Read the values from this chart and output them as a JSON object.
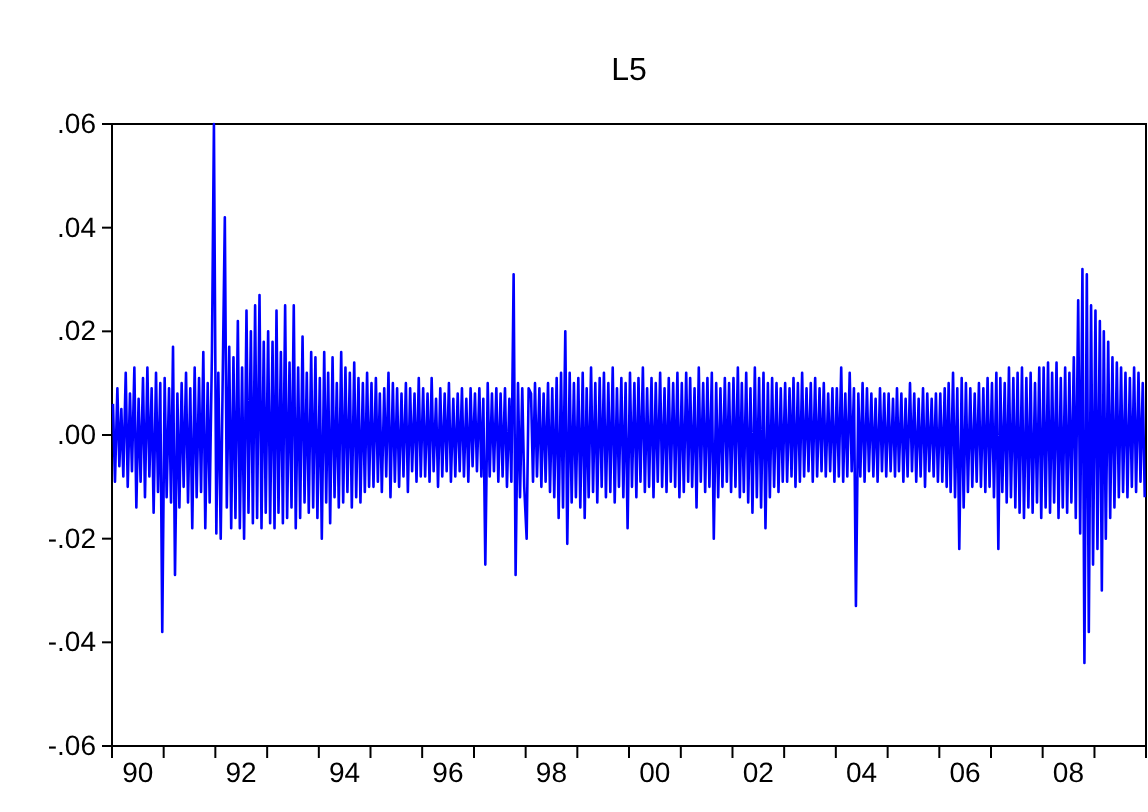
{
  "chart_data": {
    "type": "line",
    "title": "L5",
    "line_style": "solid",
    "marker": "none",
    "grid": false,
    "xlim": [
      "1990-01-01",
      "2009-12-31"
    ],
    "xticks": [
      {
        "value": "1990-01-01",
        "label": null
      },
      {
        "value": "1990-07-02",
        "label": "90"
      },
      {
        "value": "1991-01-01",
        "label": null
      },
      {
        "value": "1992-01-01",
        "label": null
      },
      {
        "value": "1992-07-01",
        "label": "92"
      },
      {
        "value": "1993-01-01",
        "label": null
      },
      {
        "value": "1994-01-01",
        "label": null
      },
      {
        "value": "1994-07-02",
        "label": "94"
      },
      {
        "value": "1995-01-01",
        "label": null
      },
      {
        "value": "1996-01-01",
        "label": null
      },
      {
        "value": "1996-07-01",
        "label": "96"
      },
      {
        "value": "1997-01-01",
        "label": null
      },
      {
        "value": "1998-01-01",
        "label": null
      },
      {
        "value": "1998-07-02",
        "label": "98"
      },
      {
        "value": "1999-01-01",
        "label": null
      },
      {
        "value": "2000-01-01",
        "label": null
      },
      {
        "value": "2000-07-01",
        "label": "00"
      },
      {
        "value": "2001-01-01",
        "label": null
      },
      {
        "value": "2002-01-01",
        "label": null
      },
      {
        "value": "2002-07-02",
        "label": "02"
      },
      {
        "value": "2003-01-01",
        "label": null
      },
      {
        "value": "2004-01-01",
        "label": null
      },
      {
        "value": "2004-07-01",
        "label": "04"
      },
      {
        "value": "2005-01-01",
        "label": null
      },
      {
        "value": "2006-01-01",
        "label": null
      },
      {
        "value": "2006-07-02",
        "label": "06"
      },
      {
        "value": "2007-01-01",
        "label": null
      },
      {
        "value": "2008-01-01",
        "label": null
      },
      {
        "value": "2008-07-01",
        "label": "08"
      },
      {
        "value": "2009-01-01",
        "label": null
      }
    ],
    "ylim": [
      -0.06,
      0.06
    ],
    "yticks": [
      {
        "value": -0.06,
        "label": "-.06"
      },
      {
        "value": -0.04,
        "label": "-.04"
      },
      {
        "value": -0.02,
        "label": "-.02"
      },
      {
        "value": 0,
        "label": ".00"
      },
      {
        "value": 0.02,
        "label": ".02"
      },
      {
        "value": 0.04,
        "label": ".04"
      },
      {
        "value": 0.06,
        "label": ".06"
      }
    ],
    "x": [
      "1990-01-08",
      "1990-01-22",
      "1990-02-08",
      "1990-02-22",
      "1990-03-08",
      "1990-03-22",
      "1990-04-08",
      "1990-04-22",
      "1990-05-08",
      "1990-05-22",
      "1990-06-08",
      "1990-06-22",
      "1990-07-08",
      "1990-07-22",
      "1990-08-08",
      "1990-08-22",
      "1990-09-08",
      "1990-09-22",
      "1990-10-08",
      "1990-10-22",
      "1990-11-08",
      "1990-11-22",
      "1990-12-08",
      "1990-12-22",
      "1991-01-08",
      "1991-01-22",
      "1991-02-08",
      "1991-02-22",
      "1991-03-08",
      "1991-03-22",
      "1991-04-08",
      "1991-04-22",
      "1991-05-08",
      "1991-05-22",
      "1991-06-08",
      "1991-06-22",
      "1991-07-08",
      "1991-07-22",
      "1991-08-08",
      "1991-08-22",
      "1991-09-08",
      "1991-09-22",
      "1991-10-08",
      "1991-10-22",
      "1991-11-08",
      "1991-11-22",
      "1991-12-08",
      "1991-12-22",
      "1992-01-08",
      "1992-01-22",
      "1992-02-08",
      "1992-02-22",
      "1992-03-08",
      "1992-03-22",
      "1992-04-08",
      "1992-04-22",
      "1992-05-08",
      "1992-05-22",
      "1992-06-08",
      "1992-06-22",
      "1992-07-08",
      "1992-07-22",
      "1992-08-08",
      "1992-08-22",
      "1992-09-08",
      "1992-09-22",
      "1992-10-08",
      "1992-10-22",
      "1992-11-08",
      "1992-11-22",
      "1992-12-08",
      "1992-12-22",
      "1993-01-08",
      "1993-01-22",
      "1993-02-08",
      "1993-02-22",
      "1993-03-08",
      "1993-03-22",
      "1993-04-08",
      "1993-04-22",
      "1993-05-08",
      "1993-05-22",
      "1993-06-08",
      "1993-06-22",
      "1993-07-08",
      "1993-07-22",
      "1993-08-08",
      "1993-08-22",
      "1993-09-08",
      "1993-09-22",
      "1993-10-08",
      "1993-10-22",
      "1993-11-08",
      "1993-11-22",
      "1993-12-08",
      "1993-12-22",
      "1994-01-08",
      "1994-01-22",
      "1994-02-08",
      "1994-02-22",
      "1994-03-08",
      "1994-03-22",
      "1994-04-08",
      "1994-04-22",
      "1994-05-08",
      "1994-05-22",
      "1994-06-08",
      "1994-06-22",
      "1994-07-08",
      "1994-07-22",
      "1994-08-08",
      "1994-08-22",
      "1994-09-08",
      "1994-09-22",
      "1994-10-08",
      "1994-10-22",
      "1994-11-08",
      "1994-11-22",
      "1994-12-08",
      "1994-12-22",
      "1995-01-08",
      "1995-01-22",
      "1995-02-08",
      "1995-02-22",
      "1995-03-08",
      "1995-03-22",
      "1995-04-08",
      "1995-04-22",
      "1995-05-08",
      "1995-05-22",
      "1995-06-08",
      "1995-06-22",
      "1995-07-08",
      "1995-07-22",
      "1995-08-08",
      "1995-08-22",
      "1995-09-08",
      "1995-09-22",
      "1995-10-08",
      "1995-10-22",
      "1995-11-08",
      "1995-11-22",
      "1995-12-08",
      "1995-12-22",
      "1996-01-08",
      "1996-01-22",
      "1996-02-08",
      "1996-02-22",
      "1996-03-08",
      "1996-03-22",
      "1996-04-08",
      "1996-04-22",
      "1996-05-08",
      "1996-05-22",
      "1996-06-08",
      "1996-06-22",
      "1996-07-08",
      "1996-07-22",
      "1996-08-08",
      "1996-08-22",
      "1996-09-08",
      "1996-09-22",
      "1996-10-08",
      "1996-10-22",
      "1996-11-08",
      "1996-11-22",
      "1996-12-08",
      "1996-12-22",
      "1997-01-08",
      "1997-01-22",
      "1997-02-08",
      "1997-02-22",
      "1997-03-08",
      "1997-03-22",
      "1997-04-08",
      "1997-04-22",
      "1997-05-08",
      "1997-05-22",
      "1997-06-08",
      "1997-06-22",
      "1997-07-08",
      "1997-07-22",
      "1997-08-08",
      "1997-08-22",
      "1997-09-08",
      "1997-09-22",
      "1997-10-08",
      "1997-10-22",
      "1997-11-08",
      "1997-11-22",
      "1997-12-08",
      "1997-12-22",
      "1998-01-08",
      "1998-01-22",
      "1998-02-08",
      "1998-02-22",
      "1998-03-08",
      "1998-03-22",
      "1998-04-08",
      "1998-04-22",
      "1998-05-08",
      "1998-05-22",
      "1998-06-08",
      "1998-06-22",
      "1998-07-08",
      "1998-07-22",
      "1998-08-08",
      "1998-08-22",
      "1998-09-08",
      "1998-09-22",
      "1998-10-08",
      "1998-10-22",
      "1998-11-08",
      "1998-11-22",
      "1998-12-08",
      "1998-12-22",
      "1999-01-08",
      "1999-01-22",
      "1999-02-08",
      "1999-02-22",
      "1999-03-08",
      "1999-03-22",
      "1999-04-08",
      "1999-04-22",
      "1999-05-08",
      "1999-05-22",
      "1999-06-08",
      "1999-06-22",
      "1999-07-08",
      "1999-07-22",
      "1999-08-08",
      "1999-08-22",
      "1999-09-08",
      "1999-09-22",
      "1999-10-08",
      "1999-10-22",
      "1999-11-08",
      "1999-11-22",
      "1999-12-08",
      "1999-12-22",
      "2000-01-08",
      "2000-01-22",
      "2000-02-08",
      "2000-02-22",
      "2000-03-08",
      "2000-03-22",
      "2000-04-08",
      "2000-04-22",
      "2000-05-08",
      "2000-05-22",
      "2000-06-08",
      "2000-06-22",
      "2000-07-08",
      "2000-07-22",
      "2000-08-08",
      "2000-08-22",
      "2000-09-08",
      "2000-09-22",
      "2000-10-08",
      "2000-10-22",
      "2000-11-08",
      "2000-11-22",
      "2000-12-08",
      "2000-12-22",
      "2001-01-08",
      "2001-01-22",
      "2001-02-08",
      "2001-02-22",
      "2001-03-08",
      "2001-03-22",
      "2001-04-08",
      "2001-04-22",
      "2001-05-08",
      "2001-05-22",
      "2001-06-08",
      "2001-06-22",
      "2001-07-08",
      "2001-07-22",
      "2001-08-08",
      "2001-08-22",
      "2001-09-08",
      "2001-09-22",
      "2001-10-08",
      "2001-10-22",
      "2001-11-08",
      "2001-11-22",
      "2001-12-08",
      "2001-12-22",
      "2002-01-08",
      "2002-01-22",
      "2002-02-08",
      "2002-02-22",
      "2002-03-08",
      "2002-03-22",
      "2002-04-08",
      "2002-04-22",
      "2002-05-08",
      "2002-05-22",
      "2002-06-08",
      "2002-06-22",
      "2002-07-08",
      "2002-07-22",
      "2002-08-08",
      "2002-08-22",
      "2002-09-08",
      "2002-09-22",
      "2002-10-08",
      "2002-10-22",
      "2002-11-08",
      "2002-11-22",
      "2002-12-08",
      "2002-12-22",
      "2003-01-08",
      "2003-01-22",
      "2003-02-08",
      "2003-02-22",
      "2003-03-08",
      "2003-03-22",
      "2003-04-08",
      "2003-04-22",
      "2003-05-08",
      "2003-05-22",
      "2003-06-08",
      "2003-06-22",
      "2003-07-08",
      "2003-07-22",
      "2003-08-08",
      "2003-08-22",
      "2003-09-08",
      "2003-09-22",
      "2003-10-08",
      "2003-10-22",
      "2003-11-08",
      "2003-11-22",
      "2003-12-08",
      "2003-12-22",
      "2004-01-08",
      "2004-01-22",
      "2004-02-08",
      "2004-02-22",
      "2004-03-08",
      "2004-03-22",
      "2004-04-08",
      "2004-04-22",
      "2004-05-08",
      "2004-05-22",
      "2004-06-08",
      "2004-06-22",
      "2004-07-08",
      "2004-07-22",
      "2004-08-08",
      "2004-08-22",
      "2004-09-08",
      "2004-09-22",
      "2004-10-08",
      "2004-10-22",
      "2004-11-08",
      "2004-11-22",
      "2004-12-08",
      "2004-12-22",
      "2005-01-08",
      "2005-01-22",
      "2005-02-08",
      "2005-02-22",
      "2005-03-08",
      "2005-03-22",
      "2005-04-08",
      "2005-04-22",
      "2005-05-08",
      "2005-05-22",
      "2005-06-08",
      "2005-06-22",
      "2005-07-08",
      "2005-07-22",
      "2005-08-08",
      "2005-08-22",
      "2005-09-08",
      "2005-09-22",
      "2005-10-08",
      "2005-10-22",
      "2005-11-08",
      "2005-11-22",
      "2005-12-08",
      "2005-12-22",
      "2006-01-08",
      "2006-01-22",
      "2006-02-08",
      "2006-02-22",
      "2006-03-08",
      "2006-03-22",
      "2006-04-08",
      "2006-04-22",
      "2006-05-08",
      "2006-05-22",
      "2006-06-08",
      "2006-06-22",
      "2006-07-08",
      "2006-07-22",
      "2006-08-08",
      "2006-08-22",
      "2006-09-08",
      "2006-09-22",
      "2006-10-08",
      "2006-10-22",
      "2006-11-08",
      "2006-11-22",
      "2006-12-08",
      "2006-12-22",
      "2007-01-08",
      "2007-01-22",
      "2007-02-08",
      "2007-02-22",
      "2007-03-08",
      "2007-03-22",
      "2007-04-08",
      "2007-04-22",
      "2007-05-08",
      "2007-05-22",
      "2007-06-08",
      "2007-06-22",
      "2007-07-08",
      "2007-07-22",
      "2007-08-08",
      "2007-08-22",
      "2007-09-08",
      "2007-09-22",
      "2007-10-08",
      "2007-10-22",
      "2007-11-08",
      "2007-11-22",
      "2007-12-08",
      "2007-12-22",
      "2008-01-08",
      "2008-01-22",
      "2008-02-08",
      "2008-02-22",
      "2008-03-08",
      "2008-03-22",
      "2008-04-08",
      "2008-04-22",
      "2008-05-08",
      "2008-05-22",
      "2008-06-08",
      "2008-06-22",
      "2008-07-08",
      "2008-07-22",
      "2008-08-08",
      "2008-08-22",
      "2008-09-08",
      "2008-09-22",
      "2008-10-08",
      "2008-10-22",
      "2008-11-08",
      "2008-11-22",
      "2008-12-08",
      "2008-12-22",
      "2009-01-08",
      "2009-01-22",
      "2009-02-08",
      "2009-02-22",
      "2009-03-08",
      "2009-03-22",
      "2009-04-08",
      "2009-04-22",
      "2009-05-08",
      "2009-05-22",
      "2009-06-08",
      "2009-06-22",
      "2009-07-08",
      "2009-07-22",
      "2009-08-08",
      "2009-08-22",
      "2009-09-08",
      "2009-09-22",
      "2009-10-08",
      "2009-10-22",
      "2009-11-08",
      "2009-11-22",
      "2009-12-08",
      "2009-12-22"
    ],
    "series": [
      {
        "color": "#0000ff",
        "values": [
          0.006,
          -0.009,
          0.009,
          -0.006,
          0.005,
          -0.008,
          0.012,
          -0.01,
          0.008,
          -0.007,
          0.013,
          -0.014,
          0.007,
          -0.009,
          0.011,
          -0.012,
          0.013,
          -0.008,
          0.009,
          -0.015,
          0.012,
          -0.011,
          0.01,
          -0.038,
          0.011,
          -0.012,
          0.009,
          -0.013,
          0.017,
          -0.027,
          0.008,
          -0.014,
          0.01,
          -0.01,
          0.012,
          -0.013,
          0.009,
          -0.018,
          0.013,
          -0.012,
          0.011,
          -0.011,
          0.016,
          -0.018,
          0.01,
          -0.013,
          0.016,
          0.06,
          -0.019,
          0.012,
          -0.02,
          0.011,
          0.042,
          -0.014,
          0.017,
          -0.018,
          0.015,
          -0.016,
          0.022,
          -0.018,
          0.013,
          -0.02,
          0.024,
          -0.015,
          0.02,
          -0.017,
          0.025,
          -0.016,
          0.027,
          -0.018,
          0.018,
          -0.015,
          0.02,
          -0.017,
          0.018,
          -0.018,
          0.024,
          -0.015,
          0.016,
          -0.017,
          0.025,
          -0.016,
          0.014,
          -0.014,
          0.025,
          -0.018,
          0.013,
          -0.016,
          0.019,
          -0.013,
          0.012,
          -0.015,
          0.016,
          -0.014,
          0.015,
          -0.016,
          0.011,
          -0.02,
          0.016,
          -0.013,
          0.012,
          -0.017,
          0.015,
          -0.012,
          0.01,
          -0.014,
          0.016,
          -0.013,
          0.013,
          -0.011,
          0.012,
          -0.014,
          0.014,
          -0.012,
          0.011,
          -0.013,
          0.01,
          -0.011,
          0.012,
          -0.01,
          0.01,
          -0.01,
          0.011,
          -0.009,
          0.008,
          -0.011,
          0.009,
          -0.008,
          0.012,
          -0.012,
          0.01,
          -0.009,
          0.009,
          -0.01,
          0.008,
          -0.008,
          0.01,
          -0.011,
          0.009,
          -0.007,
          0.008,
          -0.009,
          0.011,
          -0.008,
          0.009,
          -0.008,
          0.008,
          -0.009,
          0.011,
          -0.007,
          0.007,
          -0.01,
          0.009,
          -0.008,
          0.008,
          -0.007,
          0.01,
          -0.009,
          0.007,
          -0.008,
          0.008,
          -0.007,
          0.009,
          -0.008,
          0.007,
          -0.009,
          0.009,
          -0.006,
          0.008,
          -0.007,
          0.009,
          -0.008,
          0.007,
          -0.025,
          0.01,
          -0.008,
          0.008,
          -0.007,
          0.009,
          -0.009,
          0.008,
          -0.008,
          0.009,
          -0.01,
          0.007,
          -0.009,
          0.031,
          -0.027,
          0.01,
          -0.012,
          0.009,
          -0.01,
          -0.02,
          0.009,
          0.008,
          -0.009,
          0.01,
          -0.008,
          0.009,
          -0.01,
          0.008,
          -0.009,
          0.01,
          -0.011,
          0.009,
          -0.012,
          0.011,
          -0.016,
          0.012,
          -0.014,
          0.02,
          -0.021,
          0.012,
          -0.013,
          0.01,
          -0.012,
          0.011,
          -0.014,
          0.012,
          -0.016,
          0.009,
          -0.012,
          0.013,
          -0.011,
          0.01,
          -0.013,
          0.011,
          -0.01,
          0.012,
          -0.012,
          0.01,
          -0.011,
          0.013,
          -0.013,
          0.009,
          -0.01,
          0.011,
          -0.012,
          0.01,
          -0.018,
          0.012,
          -0.01,
          0.01,
          -0.012,
          0.011,
          -0.009,
          0.013,
          -0.011,
          0.009,
          -0.01,
          0.011,
          -0.012,
          0.01,
          -0.009,
          0.012,
          -0.01,
          0.009,
          -0.011,
          0.011,
          -0.009,
          0.01,
          -0.01,
          0.012,
          -0.012,
          0.01,
          -0.011,
          0.012,
          -0.009,
          0.011,
          -0.01,
          0.009,
          -0.014,
          0.013,
          -0.009,
          0.01,
          -0.011,
          0.011,
          -0.01,
          0.012,
          -0.02,
          0.01,
          -0.012,
          0.009,
          -0.01,
          0.011,
          -0.009,
          0.01,
          -0.011,
          0.011,
          -0.01,
          0.013,
          -0.012,
          0.01,
          -0.011,
          0.012,
          -0.013,
          0.009,
          -0.015,
          0.013,
          -0.012,
          0.011,
          -0.014,
          0.012,
          -0.018,
          0.01,
          -0.012,
          0.011,
          -0.01,
          0.01,
          -0.011,
          0.009,
          -0.009,
          0.01,
          -0.009,
          0.009,
          -0.008,
          0.011,
          -0.01,
          0.01,
          -0.009,
          0.012,
          -0.008,
          0.009,
          -0.007,
          0.01,
          -0.009,
          0.011,
          -0.008,
          0.009,
          -0.007,
          0.01,
          -0.008,
          0.008,
          -0.007,
          0.009,
          -0.009,
          0.009,
          -0.008,
          0.013,
          -0.009,
          0.008,
          -0.008,
          0.012,
          -0.007,
          0.009,
          -0.033,
          0.008,
          -0.008,
          0.01,
          -0.009,
          0.009,
          -0.007,
          0.008,
          -0.008,
          0.007,
          -0.009,
          0.009,
          -0.007,
          0.008,
          -0.008,
          0.008,
          -0.007,
          0.007,
          -0.008,
          0.009,
          -0.007,
          0.008,
          -0.009,
          0.007,
          -0.008,
          0.01,
          -0.007,
          0.008,
          -0.009,
          0.007,
          -0.008,
          0.009,
          -0.01,
          0.008,
          -0.007,
          0.007,
          -0.008,
          0.008,
          -0.009,
          0.008,
          -0.009,
          0.009,
          -0.01,
          0.01,
          -0.011,
          0.012,
          -0.012,
          0.009,
          -0.022,
          0.011,
          -0.014,
          0.01,
          -0.011,
          0.009,
          -0.01,
          0.008,
          -0.009,
          0.01,
          -0.01,
          0.009,
          -0.011,
          0.011,
          -0.01,
          0.01,
          -0.012,
          0.012,
          -0.022,
          0.011,
          -0.011,
          0.01,
          -0.013,
          0.013,
          -0.012,
          0.011,
          -0.014,
          0.012,
          -0.015,
          0.013,
          -0.016,
          0.011,
          -0.014,
          0.012,
          -0.015,
          0.01,
          -0.013,
          0.013,
          -0.016,
          0.013,
          -0.014,
          0.014,
          -0.015,
          0.012,
          -0.013,
          0.014,
          -0.016,
          0.011,
          -0.014,
          0.013,
          -0.015,
          0.012,
          -0.013,
          0.015,
          -0.016,
          0.026,
          -0.019,
          0.032,
          -0.044,
          0.031,
          -0.038,
          0.025,
          -0.025,
          0.024,
          -0.022,
          0.022,
          -0.03,
          0.02,
          -0.02,
          0.018,
          -0.016,
          0.015,
          -0.014,
          0.014,
          -0.012,
          0.013,
          -0.011,
          0.012,
          -0.012,
          0.011,
          -0.01,
          0.013,
          -0.011,
          0.012,
          -0.009,
          0.01,
          -0.012
        ]
      }
    ]
  }
}
